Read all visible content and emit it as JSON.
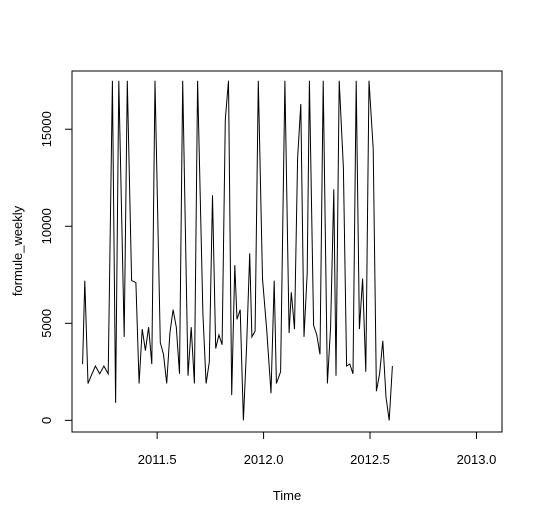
{
  "chart_data": {
    "type": "line",
    "title": "",
    "xlabel": "Time",
    "ylabel": "formule_weekly",
    "xlim": [
      2011.1,
      2013.12
    ],
    "ylim": [
      -600,
      18000
    ],
    "x_ticks": [
      2011.5,
      2012.0,
      2012.5,
      2013.0
    ],
    "x_tick_labels": [
      "2011.5",
      "2012.0",
      "2012.5",
      "2013.0"
    ],
    "y_ticks": [
      0,
      5000,
      10000,
      15000
    ],
    "y_tick_labels": [
      "0",
      "5000",
      "10000",
      "15000"
    ],
    "grid": false,
    "legend": "none",
    "line_color": "#000000",
    "series": [
      {
        "values": [
          [
            2011.15,
            2900
          ],
          [
            2011.16,
            7200
          ],
          [
            2011.175,
            1900
          ],
          [
            2011.19,
            2300
          ],
          [
            2011.21,
            2800
          ],
          [
            2011.23,
            2400
          ],
          [
            2011.25,
            2800
          ],
          [
            2011.27,
            2400
          ],
          [
            2011.29,
            17500
          ],
          [
            2011.305,
            900
          ],
          [
            2011.32,
            17500
          ],
          [
            2011.345,
            4300
          ],
          [
            2011.36,
            17500
          ],
          [
            2011.38,
            7200
          ],
          [
            2011.4,
            7100
          ],
          [
            2011.415,
            1900
          ],
          [
            2011.43,
            4700
          ],
          [
            2011.445,
            3600
          ],
          [
            2011.46,
            4800
          ],
          [
            2011.475,
            2900
          ],
          [
            2011.49,
            17500
          ],
          [
            2011.515,
            4000
          ],
          [
            2011.53,
            3400
          ],
          [
            2011.545,
            1900
          ],
          [
            2011.56,
            4500
          ],
          [
            2011.575,
            5700
          ],
          [
            2011.59,
            4800
          ],
          [
            2011.605,
            2400
          ],
          [
            2011.62,
            17500
          ],
          [
            2011.645,
            2300
          ],
          [
            2011.66,
            4800
          ],
          [
            2011.675,
            1900
          ],
          [
            2011.69,
            17500
          ],
          [
            2011.715,
            5500
          ],
          [
            2011.73,
            1900
          ],
          [
            2011.745,
            3000
          ],
          [
            2011.76,
            11600
          ],
          [
            2011.775,
            3700
          ],
          [
            2011.79,
            4400
          ],
          [
            2011.805,
            3900
          ],
          [
            2011.82,
            15500
          ],
          [
            2011.835,
            17500
          ],
          [
            2011.85,
            1300
          ],
          [
            2011.865,
            8000
          ],
          [
            2011.875,
            5200
          ],
          [
            2011.89,
            5700
          ],
          [
            2011.905,
            0
          ],
          [
            2011.92,
            3800
          ],
          [
            2011.935,
            8600
          ],
          [
            2011.945,
            4300
          ],
          [
            2011.96,
            4600
          ],
          [
            2011.975,
            17500
          ],
          [
            2011.995,
            7300
          ],
          [
            2012.015,
            4600
          ],
          [
            2012.035,
            1400
          ],
          [
            2012.05,
            7200
          ],
          [
            2012.06,
            1900
          ],
          [
            2012.08,
            2500
          ],
          [
            2012.1,
            17500
          ],
          [
            2012.12,
            4500
          ],
          [
            2012.13,
            6600
          ],
          [
            2012.145,
            4700
          ],
          [
            2012.16,
            13500
          ],
          [
            2012.175,
            16300
          ],
          [
            2012.19,
            4300
          ],
          [
            2012.205,
            7600
          ],
          [
            2012.215,
            17500
          ],
          [
            2012.235,
            4900
          ],
          [
            2012.25,
            4400
          ],
          [
            2012.265,
            3400
          ],
          [
            2012.28,
            17500
          ],
          [
            2012.3,
            1900
          ],
          [
            2012.315,
            4800
          ],
          [
            2012.33,
            11900
          ],
          [
            2012.34,
            2300
          ],
          [
            2012.355,
            17500
          ],
          [
            2012.375,
            13000
          ],
          [
            2012.39,
            2800
          ],
          [
            2012.405,
            2900
          ],
          [
            2012.42,
            2400
          ],
          [
            2012.435,
            17500
          ],
          [
            2012.45,
            4700
          ],
          [
            2012.465,
            7300
          ],
          [
            2012.48,
            2500
          ],
          [
            2012.495,
            17500
          ],
          [
            2012.515,
            14000
          ],
          [
            2012.53,
            1500
          ],
          [
            2012.545,
            2400
          ],
          [
            2012.56,
            4100
          ],
          [
            2012.575,
            1200
          ],
          [
            2012.59,
            0
          ],
          [
            2012.605,
            2800
          ]
        ]
      }
    ]
  }
}
